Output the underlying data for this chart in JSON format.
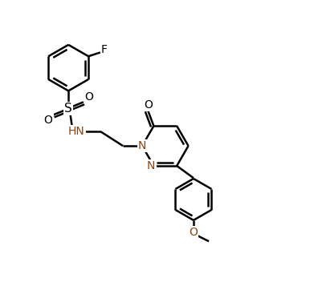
{
  "bg_color": "#ffffff",
  "line_color": "#000000",
  "heteroatom_color": "#8B4513",
  "bond_width": 1.8,
  "figsize": [
    3.86,
    3.57
  ],
  "dpi": 100,
  "xlim": [
    0,
    9.5
  ],
  "ylim": [
    0,
    8.8
  ]
}
